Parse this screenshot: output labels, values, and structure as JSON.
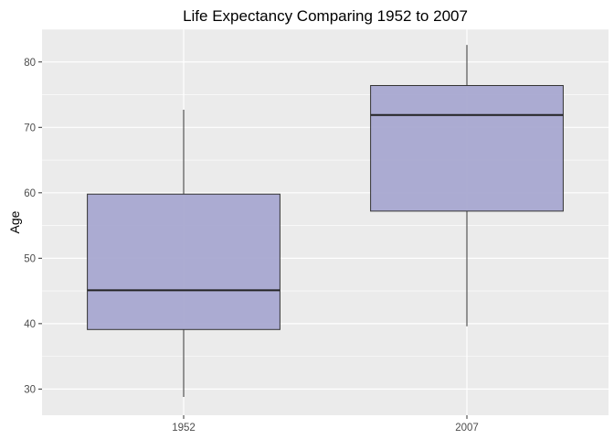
{
  "chart_data": {
    "type": "box",
    "title": "Life Expectancy Comparing 1952 to 2007",
    "xlabel": "",
    "ylabel": "Age",
    "categories": [
      "1952",
      "2007"
    ],
    "boxes": [
      {
        "category": "1952",
        "whisker_low": 28.8,
        "q1": 39.1,
        "median": 45.1,
        "q3": 59.8,
        "whisker_high": 72.7
      },
      {
        "category": "2007",
        "whisker_low": 39.6,
        "q1": 57.2,
        "median": 71.9,
        "q3": 76.4,
        "whisker_high": 82.6
      }
    ],
    "y_ticks": [
      30,
      40,
      50,
      60,
      70,
      80
    ],
    "ylim": [
      26,
      85
    ],
    "grid": true,
    "colors": {
      "panel_background": "#ebebeb",
      "grid_line": "#ffffff",
      "box_fill": "#a5a5cf",
      "box_stroke": "#333333",
      "median_line": "#222222",
      "whisker": "#333333",
      "tick_label": "#4d4d4d"
    }
  }
}
